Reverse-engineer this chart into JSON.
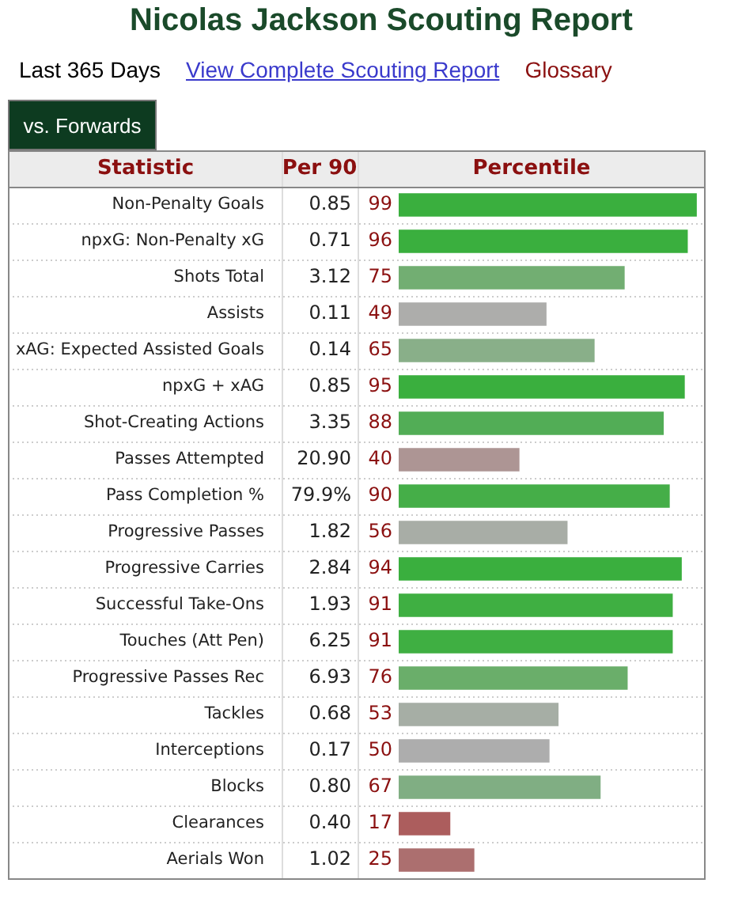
{
  "chart_data": {
    "type": "bar",
    "orientation": "horizontal",
    "title": "Nicolas Jackson Scouting Report",
    "subtitle": "Last 365 Days",
    "ylabel": "Statistic",
    "xlabel": "Percentile",
    "categories": [
      "Non-Penalty Goals",
      "npxG: Non-Penalty xG",
      "Shots Total",
      "Assists",
      "xAG: Expected Assisted Goals",
      "npxG + xAG",
      "Shot-Creating Actions",
      "Passes Attempted",
      "Pass Completion %",
      "Progressive Passes",
      "Progressive Carries",
      "Successful Take-Ons",
      "Touches (Att Pen)",
      "Progressive Passes Rec",
      "Tackles",
      "Interceptions",
      "Blocks",
      "Clearances",
      "Aerials Won"
    ],
    "values": [
      99,
      96,
      75,
      49,
      65,
      95,
      88,
      40,
      90,
      56,
      94,
      91,
      91,
      76,
      53,
      50,
      67,
      17,
      25
    ],
    "colors": [
      "#3aaf3e",
      "#3aaf3e",
      "#72ae72",
      "#adadab",
      "#89af89",
      "#3aaf3e",
      "#52ad56",
      "#ad9594",
      "#45ae48",
      "#a8ada6",
      "#3aaf3e",
      "#3faf42",
      "#3faf42",
      "#6aae6a",
      "#a6aea5",
      "#adadad",
      "#80ae83",
      "#ac5d5d",
      "#ac6f6f"
    ],
    "xlim": [
      0,
      100
    ],
    "data_labels": true,
    "tick_labels": "y",
    "annotations": [
      "View Complete Scouting Report",
      "Glossary",
      "vs. Forwards",
      "Per 90",
      "0.85",
      "0.71",
      "3.12",
      "0.11",
      "0.14",
      "0.85",
      "3.35",
      "20.90",
      "79.9%",
      "1.82",
      "2.84",
      "1.93",
      "6.25",
      "6.93",
      "0.68",
      "0.17",
      "0.80",
      "0.40",
      "1.02"
    ]
  }
}
